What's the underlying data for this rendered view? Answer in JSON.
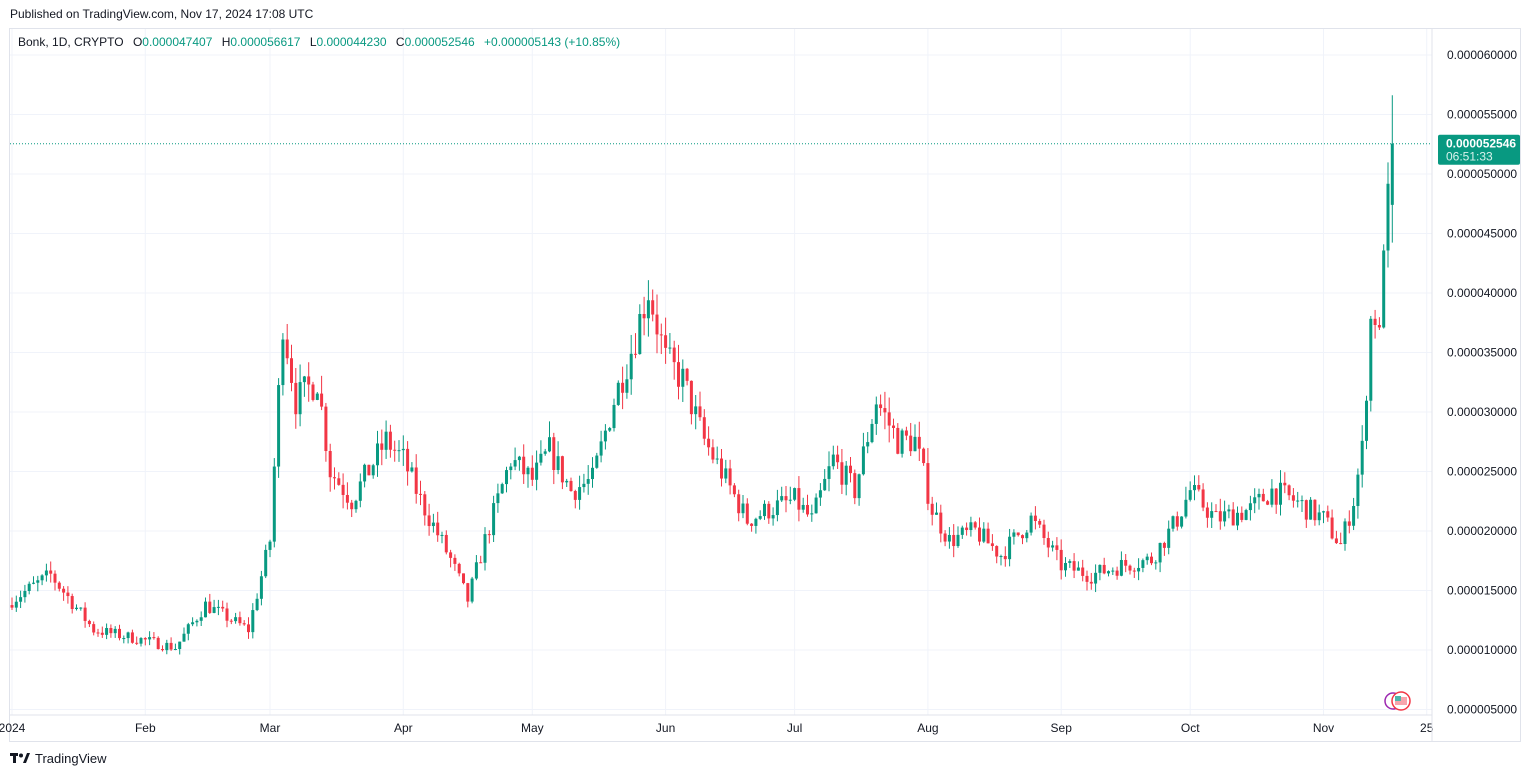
{
  "published": "Published on TradingView.com, Nov 17, 2024 17:08 UTC",
  "brand": "TradingView",
  "legend": {
    "symbol": "Bonk, 1D, CRYPTO",
    "o_label": "O",
    "o": "0.000047407",
    "h_label": "H",
    "h": "0.000056617",
    "l_label": "L",
    "l": "0.000044230",
    "c_label": "C",
    "c": "0.000052546",
    "change": "+0.000005143 (+10.85%)"
  },
  "price_tag": {
    "value": "0.000052546",
    "countdown": "06:51:33"
  },
  "colors": {
    "up": "#089981",
    "down": "#f23645",
    "grid": "#f0f3fa",
    "text": "#131722"
  },
  "chart_data": {
    "type": "candlestick",
    "title": "Bonk, 1D, CRYPTO",
    "ylim": [
      4e-06,
      6.2e-05
    ],
    "yticks": [
      "0.000060000",
      "0.000055000",
      "0.000050000",
      "0.000045000",
      "0.000040000",
      "0.000035000",
      "0.000030000",
      "0.000025000",
      "0.000020000",
      "0.000015000",
      "0.000010000",
      "0.000005000"
    ],
    "ytick_values": [
      60,
      55,
      50,
      45,
      40,
      35,
      30,
      25,
      20,
      15,
      10,
      5
    ],
    "y_unit": 1e-06,
    "xticks": [
      {
        "label": "2024",
        "day": 0
      },
      {
        "label": "Feb",
        "day": 31
      },
      {
        "label": "Mar",
        "day": 60
      },
      {
        "label": "Apr",
        "day": 91
      },
      {
        "label": "May",
        "day": 121
      },
      {
        "label": "Jun",
        "day": 152
      },
      {
        "label": "Jul",
        "day": 182
      },
      {
        "label": "Aug",
        "day": 213
      },
      {
        "label": "Sep",
        "day": 244
      },
      {
        "label": "Oct",
        "day": 274
      },
      {
        "label": "Nov",
        "day": 305
      },
      {
        "label": "25",
        "day": 329
      }
    ],
    "day_count": 322,
    "approx_close_anchors_day_value": [
      [
        0,
        14.2
      ],
      [
        9,
        16.3
      ],
      [
        19,
        11.7
      ],
      [
        31,
        10.8
      ],
      [
        38,
        10.2
      ],
      [
        45,
        13.8
      ],
      [
        55,
        11.7
      ],
      [
        60,
        19.2
      ],
      [
        63,
        37.7
      ],
      [
        66,
        31
      ],
      [
        71,
        32.7
      ],
      [
        74,
        25.1
      ],
      [
        79,
        22.6
      ],
      [
        87,
        27.6
      ],
      [
        91,
        26
      ],
      [
        95,
        22.6
      ],
      [
        102,
        17.6
      ],
      [
        106,
        14.2
      ],
      [
        110,
        19.2
      ],
      [
        116,
        26
      ],
      [
        121,
        24.3
      ],
      [
        125,
        26.8
      ],
      [
        130,
        23.4
      ],
      [
        135,
        24.3
      ],
      [
        140,
        31
      ],
      [
        144,
        35.2
      ],
      [
        148,
        40.3
      ],
      [
        152,
        34.4
      ],
      [
        156,
        32.7
      ],
      [
        161,
        27.6
      ],
      [
        166,
        24.3
      ],
      [
        171,
        20.9
      ],
      [
        176,
        21.8
      ],
      [
        182,
        22.6
      ],
      [
        186,
        20.9
      ],
      [
        191,
        26
      ],
      [
        196,
        23.4
      ],
      [
        201,
        31
      ],
      [
        206,
        27.6
      ],
      [
        210,
        27.6
      ],
      [
        214,
        21.8
      ],
      [
        218,
        19.2
      ],
      [
        224,
        20
      ],
      [
        230,
        18
      ],
      [
        237,
        21
      ],
      [
        244,
        17.1
      ],
      [
        251,
        16.3
      ],
      [
        258,
        17.1
      ],
      [
        265,
        17.6
      ],
      [
        271,
        21
      ],
      [
        274,
        23.4
      ],
      [
        280,
        21
      ],
      [
        288,
        21.8
      ],
      [
        293,
        23.4
      ],
      [
        298,
        22.6
      ],
      [
        305,
        21
      ],
      [
        309,
        18.8
      ],
      [
        312,
        22.6
      ],
      [
        314,
        26.8
      ],
      [
        316,
        37.7
      ],
      [
        317,
        38.2
      ],
      [
        318,
        36
      ],
      [
        319,
        44.9
      ],
      [
        320,
        47.4
      ]
    ],
    "last_candle": {
      "open": 47.407,
      "high": 56.617,
      "low": 44.23,
      "close": 52.546
    }
  }
}
